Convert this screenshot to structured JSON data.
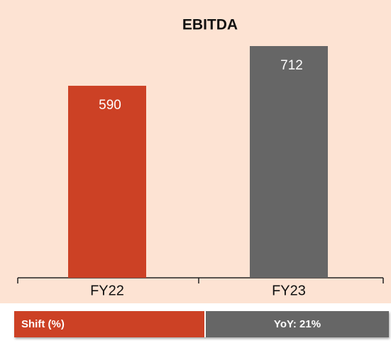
{
  "chart_data": {
    "type": "bar",
    "title": "EBITDA",
    "categories": [
      "FY22",
      "FY23"
    ],
    "values": [
      590,
      712
    ],
    "colors": [
      "#cc4125",
      "#666666"
    ],
    "grid": false
  },
  "summary_bar": {
    "label": "Shift (%)",
    "value": "YoY: 21%"
  }
}
